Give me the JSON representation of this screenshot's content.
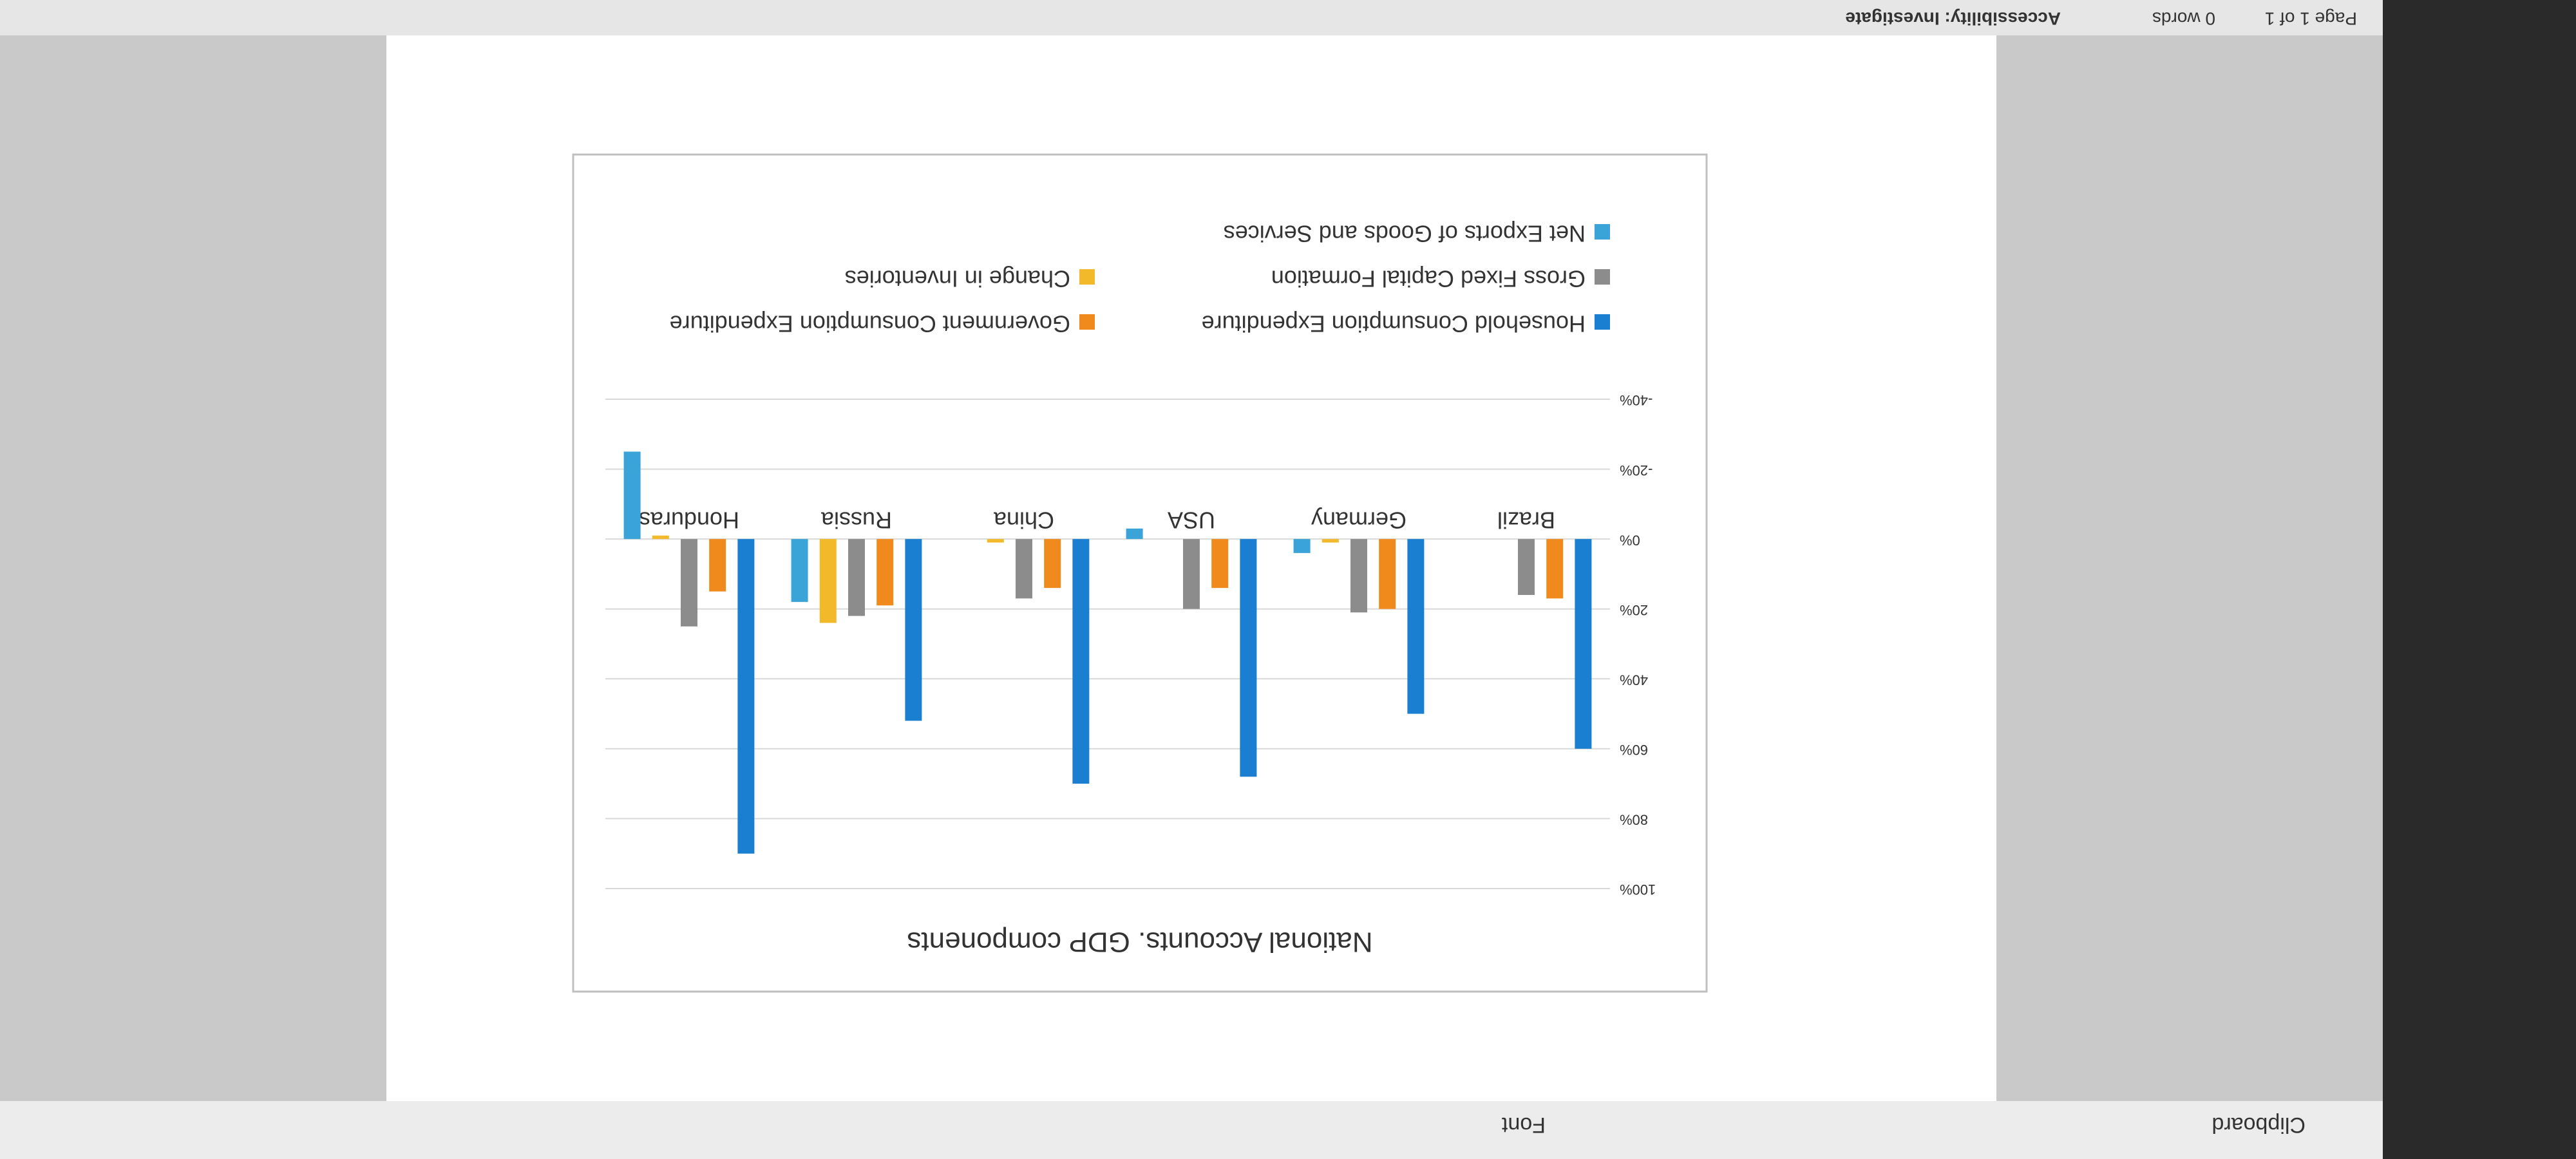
{
  "ui": {
    "ribbon": {
      "groups": [
        "Clipboard",
        "Font"
      ]
    },
    "status_bar": {
      "page": "Page 1 of 1",
      "words": "0 words",
      "accessibility": "Accessibility: Investigate"
    }
  },
  "chart_data": {
    "type": "bar",
    "title": "National Accounts. GDP components",
    "categories": [
      "Brazil",
      "Germany",
      "USA",
      "China",
      "Russia",
      "Honduras"
    ],
    "series": [
      {
        "name": "Household Consumption Expenditure",
        "color": "#1a7fd0",
        "values": [
          60,
          50,
          68,
          70,
          52,
          90
        ]
      },
      {
        "name": "Government Consumption Expenditure",
        "color": "#f08a1c",
        "values": [
          17,
          20,
          14,
          14,
          19,
          15
        ]
      },
      {
        "name": "Gross Fixed Capital Formation",
        "color": "#8c8c8c",
        "values": [
          16,
          21,
          20,
          17,
          22,
          25
        ]
      },
      {
        "name": "Change in Inventories",
        "color": "#f2b92a",
        "values": [
          0,
          1,
          0,
          1,
          24,
          -1
        ]
      },
      {
        "name": "Net Exports of Goods and Services",
        "color": "#3aa3d8",
        "values": [
          0,
          4,
          -3,
          0,
          18,
          -25
        ]
      }
    ],
    "ylim": [
      -40,
      100
    ],
    "yticks": [
      {
        "value": -40,
        "label": "-40%"
      },
      {
        "value": -20,
        "label": "-20%"
      },
      {
        "value": 0,
        "label": "0%"
      },
      {
        "value": 20,
        "label": "20%"
      },
      {
        "value": 40,
        "label": "40%"
      },
      {
        "value": 60,
        "label": "60%"
      },
      {
        "value": 80,
        "label": "80%"
      },
      {
        "value": 100,
        "label": "100%"
      }
    ],
    "grid": true
  }
}
